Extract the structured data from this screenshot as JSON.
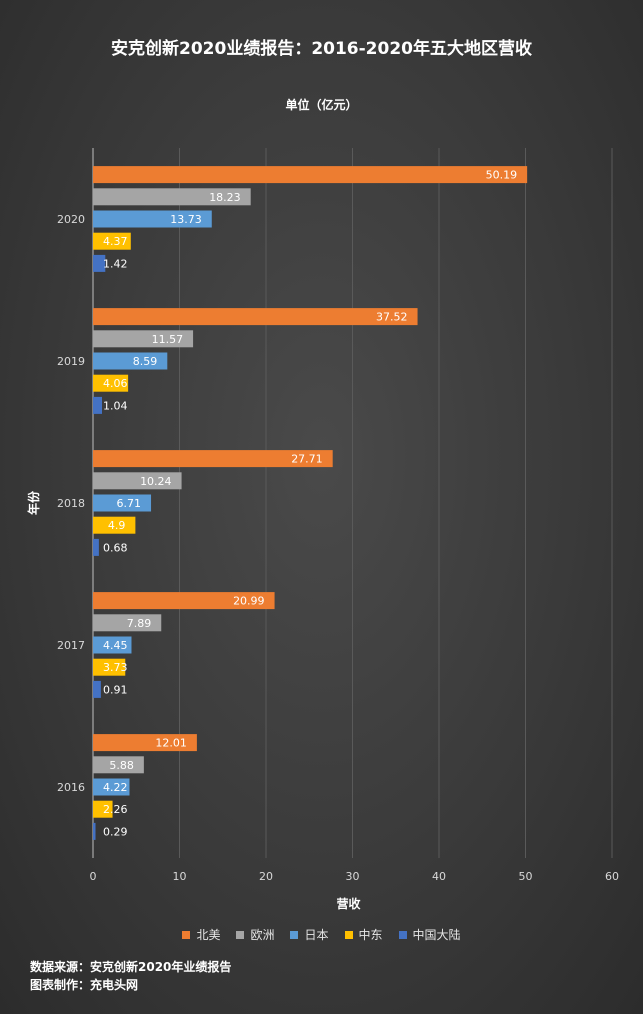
{
  "chart_data": {
    "type": "bar",
    "orientation": "horizontal",
    "title": "安克创新2020业绩报告：2016-2020年五大地区营收",
    "unit_label": "单位（亿元）",
    "xlabel": "营收",
    "ylabel": "年份",
    "xlim": [
      0,
      60
    ],
    "xticks": [
      0,
      10,
      20,
      30,
      40,
      50,
      60
    ],
    "grid": true,
    "legend_position": "bottom",
    "categories": [
      "2020",
      "2019",
      "2018",
      "2017",
      "2016"
    ],
    "series": [
      {
        "name": "北美",
        "color": "#ED7D31",
        "values": [
          50.19,
          37.52,
          27.71,
          20.99,
          12.01
        ],
        "labels": [
          "50.19",
          "37.52",
          "27.71",
          "20.99",
          "12.01"
        ]
      },
      {
        "name": "欧洲",
        "color": "#A5A5A5",
        "values": [
          18.23,
          11.57,
          10.24,
          7.89,
          5.88
        ],
        "labels": [
          "18.23",
          "11.57",
          "10.24",
          "7.89",
          "5.88"
        ]
      },
      {
        "name": "日本",
        "color": "#5B9BD5",
        "values": [
          13.73,
          8.59,
          6.71,
          4.45,
          4.22
        ],
        "labels": [
          "13.73",
          "8.59",
          "6.71",
          "4.45",
          "4.22"
        ]
      },
      {
        "name": "中东",
        "color": "#FFC000",
        "values": [
          4.37,
          4.06,
          4.9,
          3.73,
          2.26
        ],
        "labels": [
          "4.37",
          "4.06",
          "4.9",
          "3.73",
          "2.26"
        ]
      },
      {
        "name": "中国大陆",
        "color": "#4472C4",
        "values": [
          1.42,
          1.04,
          0.68,
          0.91,
          0.29
        ],
        "labels": [
          "1.42",
          "1.04",
          "0.68",
          "0.91",
          "0.29"
        ]
      }
    ]
  },
  "footer": {
    "source": "数据来源：安克创新2020年业绩报告",
    "maker": "图表制作：充电头网"
  }
}
